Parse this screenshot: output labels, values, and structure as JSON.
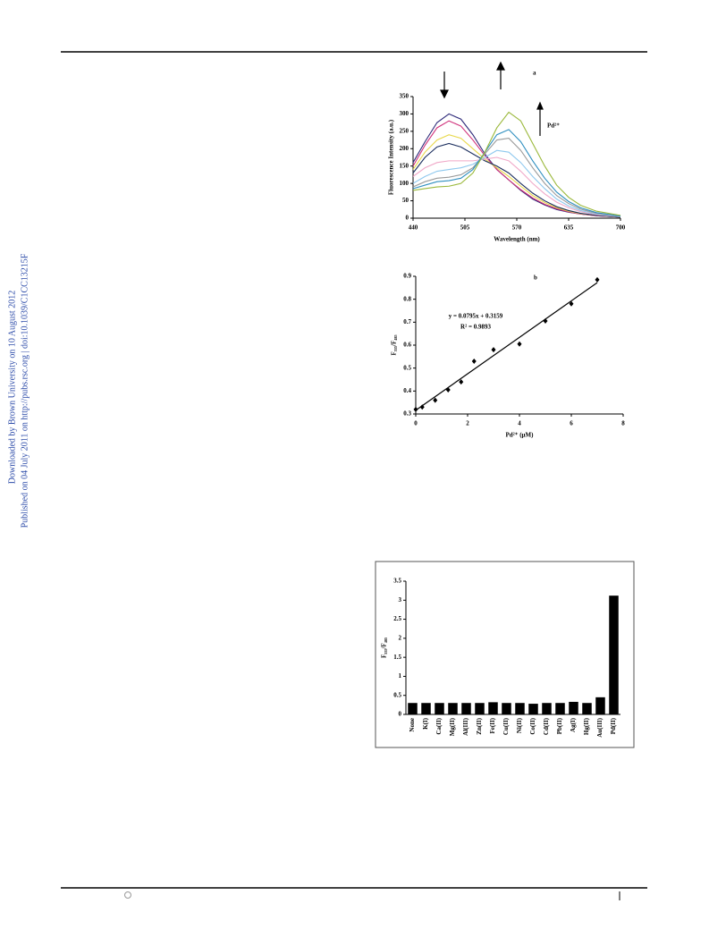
{
  "sidebar": {
    "downloaded": "Downloaded by Brown University on 10 August 2012",
    "published": "Published on 04 July 2011 on http://pubs.rsc.org | doi:10.1039/C1CC13215F"
  },
  "chart_data": [
    {
      "type": "line",
      "label": "a",
      "annotation": "Pd²⁺",
      "xlabel": "Wavelength (nm)",
      "ylabel": "Fluorescence Intensity (a.u.)",
      "x": [
        440,
        455,
        470,
        485,
        500,
        515,
        530,
        545,
        560,
        575,
        590,
        605,
        620,
        635,
        650,
        670,
        700
      ],
      "series": [
        {
          "color": "#2e2a7a",
          "values": [
            160,
            220,
            275,
            300,
            285,
            240,
            185,
            140,
            110,
            80,
            55,
            38,
            25,
            17,
            12,
            7,
            3
          ]
        },
        {
          "color": "#d0307a",
          "values": [
            150,
            210,
            260,
            280,
            265,
            225,
            180,
            140,
            110,
            82,
            58,
            40,
            27,
            18,
            12,
            7,
            3
          ]
        },
        {
          "color": "#e8d84a",
          "values": [
            140,
            190,
            225,
            240,
            230,
            200,
            170,
            145,
            120,
            92,
            65,
            45,
            30,
            20,
            13,
            8,
            3
          ]
        },
        {
          "color": "#1c2f5e",
          "values": [
            130,
            175,
            205,
            215,
            205,
            185,
            165,
            150,
            130,
            100,
            72,
            50,
            33,
            22,
            14,
            8,
            3
          ]
        },
        {
          "color": "#f0a8c8",
          "values": [
            120,
            145,
            160,
            165,
            165,
            165,
            170,
            175,
            165,
            135,
            100,
            70,
            46,
            30,
            19,
            10,
            4
          ]
        },
        {
          "color": "#8ec8ee",
          "values": [
            100,
            120,
            135,
            140,
            145,
            155,
            175,
            195,
            190,
            160,
            120,
            85,
            55,
            35,
            22,
            12,
            4
          ]
        },
        {
          "color": "#9a9a9a",
          "values": [
            90,
            105,
            115,
            118,
            125,
            145,
            185,
            225,
            230,
            195,
            145,
            100,
            65,
            42,
            26,
            14,
            5
          ]
        },
        {
          "color": "#2f8fc0",
          "values": [
            85,
            95,
            105,
            108,
            115,
            140,
            190,
            240,
            255,
            220,
            165,
            115,
            75,
            48,
            30,
            16,
            6
          ]
        },
        {
          "color": "#9ab83a",
          "values": [
            80,
            85,
            90,
            92,
            100,
            130,
            190,
            260,
            305,
            280,
            215,
            150,
            95,
            60,
            37,
            20,
            8
          ]
        }
      ],
      "xlim": [
        440,
        700
      ],
      "xticks": [
        440,
        505,
        570,
        635,
        700
      ],
      "ylim": [
        0,
        350
      ],
      "yticks": [
        0,
        50,
        100,
        150,
        200,
        250,
        300,
        350
      ]
    },
    {
      "type": "scatter",
      "label": "b",
      "xlabel": "Pd²⁺ (μM)",
      "ylabel": "F₅₅₅/F₄₈₅",
      "color": "#000000",
      "x": [
        0,
        0.25,
        0.75,
        1.25,
        1.75,
        2.25,
        3,
        4,
        5,
        6,
        7
      ],
      "values": [
        0.32,
        0.33,
        0.36,
        0.405,
        0.44,
        0.53,
        0.58,
        0.605,
        0.705,
        0.78,
        0.885
      ],
      "fit": {
        "equation": "y = 0.0795x + 0.3159",
        "r2": "R² = 0.9893",
        "slope": 0.0795,
        "intercept": 0.3159
      },
      "xlim": [
        0,
        8
      ],
      "xticks": [
        0,
        2,
        4,
        6,
        8
      ],
      "ylim": [
        0.3,
        0.9
      ],
      "yticks": [
        0.3,
        0.4,
        0.5,
        0.6,
        0.7,
        0.8,
        0.9
      ]
    },
    {
      "type": "bar",
      "ylabel": "F₅₅₅/F₄₈₅",
      "color": "#000000",
      "categories": [
        "None",
        "K(I)",
        "Ca(II)",
        "Mg(II)",
        "Al(III)",
        "Zn(II)",
        "Fe(II)",
        "Cu(II)",
        "Ni(II)",
        "Co(II)",
        "Cd(II)",
        "Pb(II)",
        "Ag(I)",
        "Hg(II)",
        "Au(III)",
        "Pd(II)"
      ],
      "values": [
        0.3,
        0.3,
        0.3,
        0.3,
        0.3,
        0.3,
        0.32,
        0.3,
        0.3,
        0.28,
        0.3,
        0.3,
        0.33,
        0.3,
        0.45,
        3.12
      ],
      "ylim": [
        0,
        3.5
      ],
      "yticks": [
        0,
        0.5,
        1,
        1.5,
        2,
        2.5,
        3,
        3.5
      ]
    }
  ]
}
